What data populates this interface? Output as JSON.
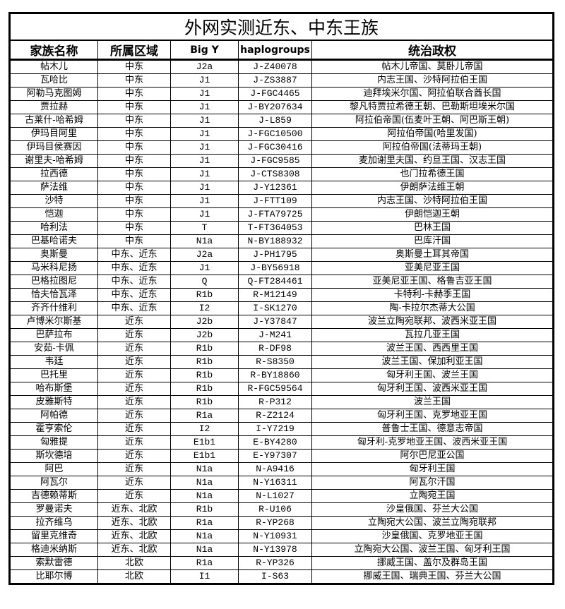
{
  "title": "外网实测近东、中东王族",
  "headers": [
    "家族名称",
    "所属区域",
    "Big Y",
    "haplogroups",
    "统治政权"
  ],
  "rows": [
    [
      "帖木儿",
      "中东",
      "J2a",
      "J-Z40078",
      "帖木儿帝国、莫卧儿帝国"
    ],
    [
      "瓦哈比",
      "中东",
      "J1",
      "J-ZS3887",
      "内志王国、沙特阿拉伯王国"
    ],
    [
      "阿勒马克图姆",
      "中东",
      "J1",
      "J-FGC4465",
      "迪拜埃米尔国、阿拉伯联合酋长国"
    ],
    [
      "贾拉赫",
      "中东",
      "J1",
      "J-BY207634",
      "黎凡特贾拉希德王朝、巴勒斯坦埃米尔国"
    ],
    [
      "古莱什-哈希姆",
      "中东",
      "J1",
      "J-L859",
      "阿拉伯帝国(伍麦叶王朝、阿巴斯王朝)"
    ],
    [
      "伊玛目阿里",
      "中东",
      "J1",
      "J-FGC10500",
      "阿拉伯帝国(哈里发国)"
    ],
    [
      "伊玛目侯赛因",
      "中东",
      "J1",
      "J-FGC30416",
      "阿拉伯帝国(法蒂玛王朝)"
    ],
    [
      "谢里夫-哈希姆",
      "中东",
      "J1",
      "J-FGC9585",
      "麦加谢里夫国、约旦王国、汉志王国"
    ],
    [
      "拉西德",
      "中东",
      "J1",
      "J-CTS8308",
      "也门拉希德王国"
    ],
    [
      "萨法维",
      "中东",
      "J1",
      "J-Y12361",
      "伊朗萨法维王朝"
    ],
    [
      "沙特",
      "中东",
      "J1",
      "J-FTT109",
      "内志王国、沙特阿拉伯王国"
    ],
    [
      "恺迦",
      "中东",
      "J1",
      "J-FTA79725",
      "伊朗恺迦王朝"
    ],
    [
      "哈利法",
      "中东",
      "T",
      "T-FT364053",
      "巴林王国"
    ],
    [
      "巴基哈诺夫",
      "中东",
      "N1a",
      "N-BY188932",
      "巴库汗国"
    ],
    [
      "奥斯曼",
      "中东、近东",
      "J2a",
      "J-PH1795",
      "奥斯曼土耳其帝国"
    ],
    [
      "马米科尼扬",
      "中东、近东",
      "J1",
      "J-BY56918",
      "亚美尼亚王国"
    ],
    [
      "巴格拉图尼",
      "中东、近东",
      "Q",
      "Q-FT284461",
      "亚美尼亚王国、格鲁吉亚王国"
    ],
    [
      "恰夫恰瓦泽",
      "中东、近东",
      "R1b",
      "R-M12149",
      "卡特利-卡赫季王国"
    ],
    [
      "齐齐什维利",
      "中东、近东",
      "I2",
      "I-SK1270",
      "陶-卡拉尔杰蒂大公国"
    ],
    [
      "卢博米尔斯基",
      "近东",
      "J2b",
      "J-Y37847",
      "波兰立陶宛联邦、波西米亚王国"
    ],
    [
      "巴萨拉布",
      "近东",
      "J2b",
      "J-M241",
      "瓦拉几亚王国"
    ],
    [
      "安茹-卡佩",
      "近东",
      "R1b",
      "R-DF98",
      "波兰王国、西西里王国"
    ],
    [
      "韦廷",
      "近东",
      "R1b",
      "R-S8350",
      "波兰王国、保加利亚王国"
    ],
    [
      "巴托里",
      "近东",
      "R1b",
      "R-BY18860",
      "匈牙利王国、波兰王国"
    ],
    [
      "哈布斯堡",
      "近东",
      "R1b",
      "R-FGC59564",
      "匈牙利王国、波西米亚王国"
    ],
    [
      "皮雅斯特",
      "近东",
      "R1b",
      "R-P312",
      "波兰王国"
    ],
    [
      "阿帕德",
      "近东",
      "R1a",
      "R-Z2124",
      "匈牙利王国、克罗地亚王国"
    ],
    [
      "霍亨索伦",
      "近东",
      "I2",
      "I-Y7219",
      "普鲁士王国、德意志帝国"
    ],
    [
      "匈雅提",
      "近东",
      "E1b1",
      "E-BY4280",
      "匈牙利-克罗地亚王国、波西米亚王国"
    ],
    [
      "斯坎德培",
      "近东",
      "E1b1",
      "E-Y97307",
      "阿尔巴尼亚公国"
    ],
    [
      "阿巴",
      "近东",
      "N1a",
      "N-A9416",
      "匈牙利王国"
    ],
    [
      "阿瓦尔",
      "近东",
      "N1a",
      "N-Y16311",
      "阿瓦尔汗国"
    ],
    [
      "吉德赖蒂斯",
      "近东",
      "N1a",
      "N-L1027",
      "立陶宛王国"
    ],
    [
      "罗曼诺夫",
      "近东、北欧",
      "R1b",
      "R-U106",
      "沙皇俄国、芬兰大公国"
    ],
    [
      "拉齐维乌",
      "近东、北欧",
      "R1a",
      "R-YP268",
      "立陶宛大公国、波兰立陶宛联邦"
    ],
    [
      "留里克维奇",
      "近东、北欧",
      "N1a",
      "N-Y10931",
      "沙皇俄国、克罗地亚王国"
    ],
    [
      "格迪米纳斯",
      "近东、北欧",
      "N1a",
      "N-Y13978",
      "立陶宛大公国、波兰王国、匈牙利王国"
    ],
    [
      "索默雷德",
      "北欧",
      "R1a",
      "R-YP326",
      "挪威王国、盖尔及群岛王国"
    ],
    [
      "比耶尔博",
      "北欧",
      "I1",
      "I-S63",
      "挪威王国、瑞典王国、芬兰大公国"
    ]
  ]
}
